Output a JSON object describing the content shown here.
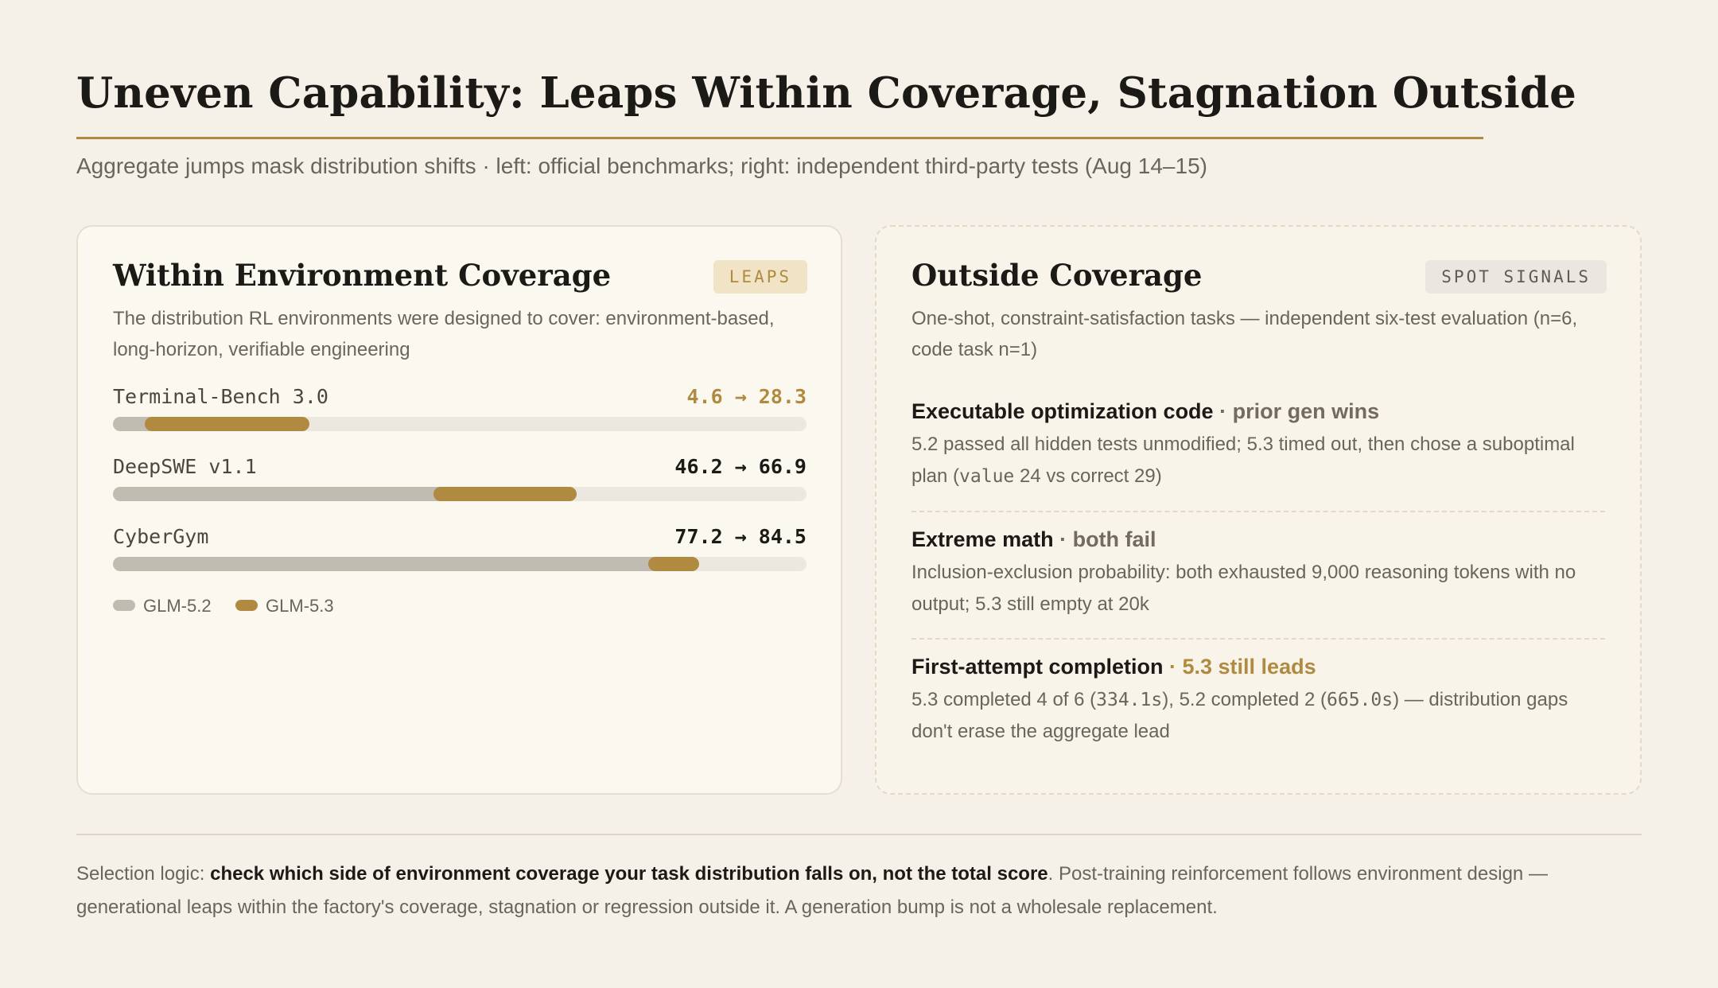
{
  "header": {
    "title": "Uneven Capability: Leaps Within Coverage, Stagnation Outside",
    "subtitle": "Aggregate jumps mask distribution shifts · left: official benchmarks; right: independent third-party tests (Aug 14–15)"
  },
  "left_card": {
    "title": "Within Environment Coverage",
    "badge": "LEAPS",
    "description": "The distribution RL environments were designed to cover: environment-based, long-horizon, verifiable engineering"
  },
  "chart_data": {
    "type": "bar",
    "categories": [
      "Terminal-Bench 3.0",
      "DeepSWE v1.1",
      "CyberGym"
    ],
    "series": [
      {
        "name": "GLM-5.2",
        "values": [
          4.6,
          46.2,
          77.2
        ]
      },
      {
        "name": "GLM-5.3",
        "values": [
          28.3,
          66.9,
          84.5
        ]
      }
    ],
    "value_labels": [
      "4.6 → 28.3",
      "46.2 → 66.9",
      "77.2 → 84.5"
    ],
    "highlighted": [
      true,
      false,
      false
    ],
    "xlim": [
      0,
      100
    ],
    "legend": "bottom-left",
    "colors": {
      "GLM-5.2": "#c1bcb2",
      "GLM-5.3": "#b08a40",
      "track": "#ece8df"
    }
  },
  "right_card": {
    "title": "Outside Coverage",
    "badge": "SPOT SIGNALS",
    "description": "One-shot, constraint-satisfaction tasks — independent six-test evaluation (n=6, code task n=1)",
    "signals": [
      {
        "title": "Executable optimization code",
        "verdict": " · prior gen wins",
        "body_pre": "5.2 passed all hidden tests unmodified; 5.3 timed out, then chose a suboptimal plan (",
        "body_code": "value",
        "body_post": " 24 vs correct 29)"
      },
      {
        "title": "Extreme math",
        "verdict": " · both fail",
        "body": "Inclusion-exclusion probability: both exhausted 9,000 reasoning tokens with no output; 5.3 still empty at 20k"
      },
      {
        "title": "First-attempt completion",
        "verdict": " · 5.3 still leads",
        "body_a": "5.3 completed 4 of 6 (",
        "code_a": "334.1s",
        "body_b": "), 5.2 completed 2 (",
        "code_b": "665.0s",
        "body_c": ") — distribution gaps don't erase the aggregate lead"
      }
    ]
  },
  "footer": {
    "lead": "Selection logic: ",
    "bold": "check which side of environment coverage your task distribution falls on, not the total score",
    "rest": ". Post-training reinforcement follows environment design — generational leaps within the factory's coverage, stagnation or regression outside it. A generation bump is not a wholesale replacement."
  },
  "colors": {
    "background": "#f5f1e8",
    "accent": "#b08a40",
    "text": "#1c1a17",
    "muted": "#6a655c"
  }
}
